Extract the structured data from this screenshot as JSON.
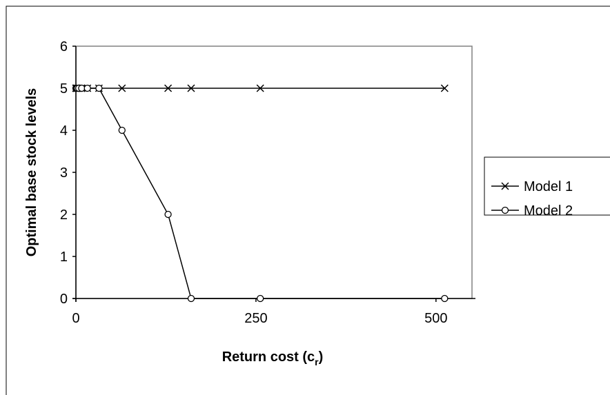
{
  "chart_data": {
    "type": "line",
    "title": "",
    "xlabel": "Return cost (c",
    "xlabel_subscript": "r",
    "xlabel_close": ")",
    "ylabel": "Optimal base stock levels",
    "xlim": [
      0,
      550
    ],
    "ylim": [
      0,
      6
    ],
    "xticks": [
      0,
      250,
      500
    ],
    "yticks": [
      0,
      1,
      2,
      3,
      4,
      5,
      6
    ],
    "grid": false,
    "legend_position": "right",
    "series": [
      {
        "name": "Model 1",
        "marker": "x",
        "x": [
          0,
          1,
          2,
          4,
          8,
          16,
          32,
          64,
          128,
          160,
          256,
          512
        ],
        "y": [
          5,
          5,
          5,
          5,
          5,
          5,
          5,
          5,
          5,
          5,
          5,
          5
        ]
      },
      {
        "name": "Model 2",
        "marker": "o",
        "x": [
          0,
          1,
          2,
          4,
          8,
          16,
          32,
          64,
          128,
          160,
          256,
          512
        ],
        "y": [
          5,
          5,
          5,
          5,
          5,
          5,
          5,
          4,
          2,
          0,
          0,
          0
        ]
      }
    ],
    "colors": {
      "line": "#000000",
      "plot_border": "#808080",
      "background": "#ffffff"
    }
  }
}
